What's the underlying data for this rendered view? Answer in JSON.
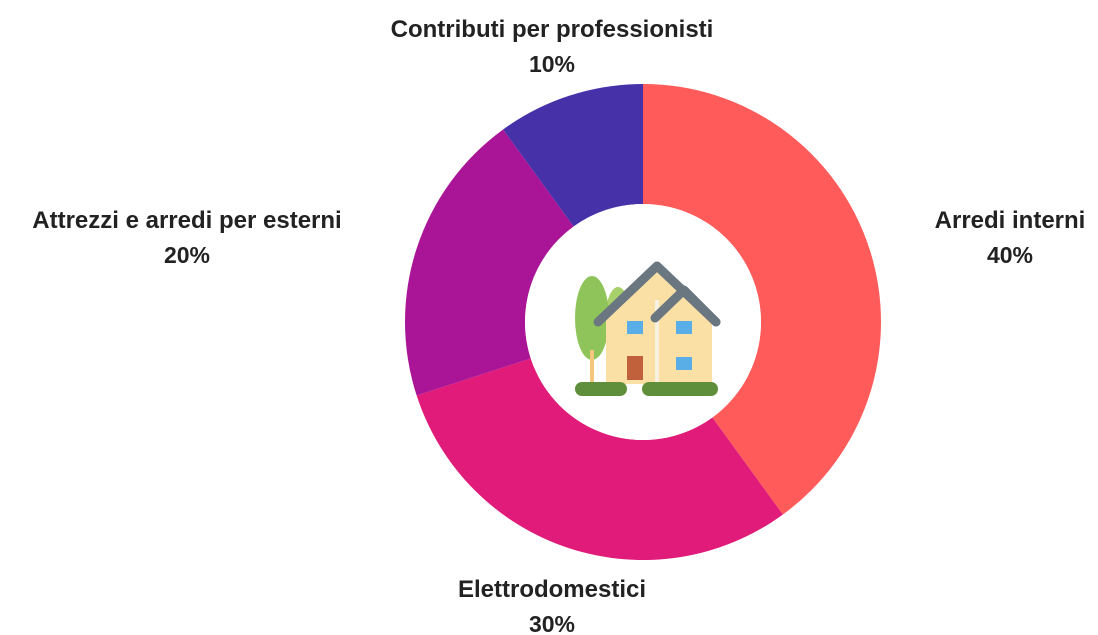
{
  "chart_data": {
    "type": "pie",
    "donut": true,
    "start": "top",
    "direction": "clockwise",
    "title": "",
    "legend": "none",
    "center_icon": "house-icon",
    "slices": [
      {
        "label": "Arredi interni",
        "value": 40,
        "value_label": "40%",
        "color": "#fe5b5a"
      },
      {
        "label": "Elettrodomestici",
        "value": 30,
        "value_label": "30%",
        "color": "#e01b79"
      },
      {
        "label": "Attrezzi e arredi per esterni",
        "value": 20,
        "value_label": "20%",
        "color": "#aa1597"
      },
      {
        "label": "Contributi per professionisti",
        "value": 10,
        "value_label": "10%",
        "color": "#4631a9"
      }
    ]
  }
}
